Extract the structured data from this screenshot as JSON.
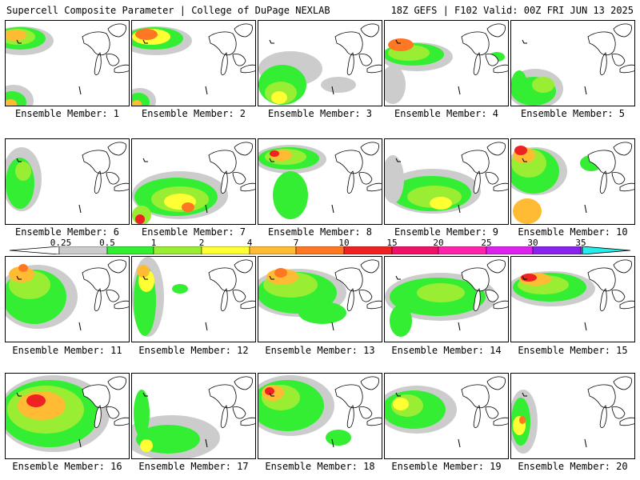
{
  "header": {
    "title": "Supercell Composite Parameter | College of DuPage NEXLAB",
    "run": "18Z GEFS | F102 Valid: 00Z FRI JUN 13 2025"
  },
  "members": [
    {
      "label": "Ensemble Member: 1"
    },
    {
      "label": "Ensemble Member: 2"
    },
    {
      "label": "Ensemble Member: 3"
    },
    {
      "label": "Ensemble Member: 4"
    },
    {
      "label": "Ensemble Member: 5"
    },
    {
      "label": "Ensemble Member: 6"
    },
    {
      "label": "Ensemble Member: 7"
    },
    {
      "label": "Ensemble Member: 8"
    },
    {
      "label": "Ensemble Member: 9"
    },
    {
      "label": "Ensemble Member: 10"
    },
    {
      "label": "Ensemble Member: 11"
    },
    {
      "label": "Ensemble Member: 12"
    },
    {
      "label": "Ensemble Member: 13"
    },
    {
      "label": "Ensemble Member: 14"
    },
    {
      "label": "Ensemble Member: 15"
    },
    {
      "label": "Ensemble Member: 16"
    },
    {
      "label": "Ensemble Member: 17"
    },
    {
      "label": "Ensemble Member: 18"
    },
    {
      "label": "Ensemble Member: 19"
    },
    {
      "label": "Ensemble Member: 20"
    }
  ],
  "legend": {
    "ticks": [
      "0.25",
      "0.5",
      "1",
      "2",
      "4",
      "7",
      "10",
      "15",
      "20",
      "25",
      "30",
      "35"
    ],
    "colors": [
      "#cccccc",
      "#33ee33",
      "#99ee33",
      "#ffff33",
      "#ffbb33",
      "#ff7722",
      "#ee2222",
      "#ee1166",
      "#ff22aa",
      "#dd22ee",
      "#8822ee",
      "#aa66dd",
      "#22eeee"
    ]
  }
}
